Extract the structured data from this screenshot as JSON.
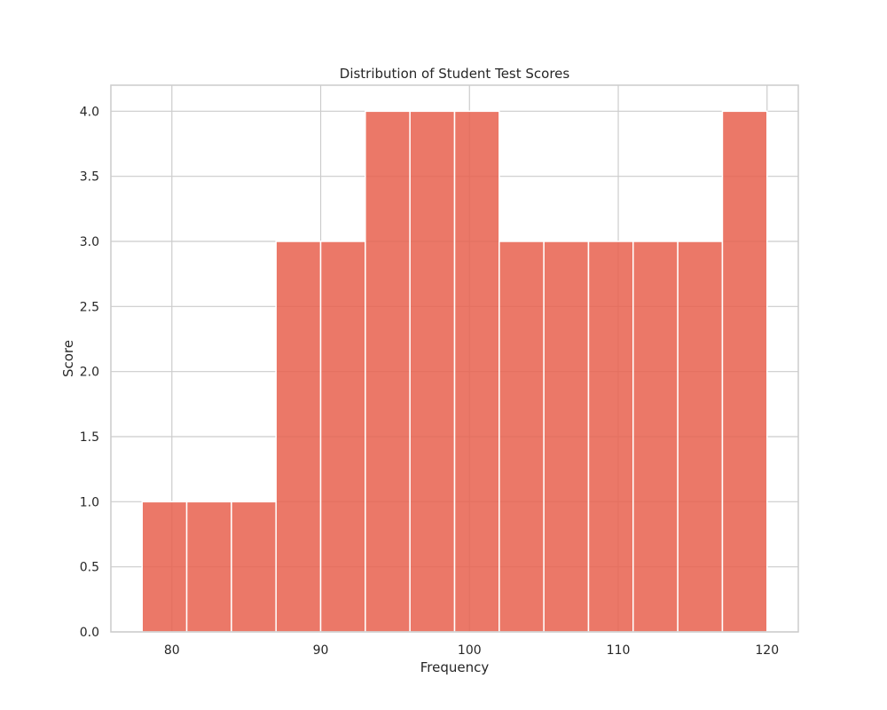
{
  "chart_data": {
    "type": "bar",
    "subtype": "histogram",
    "title": "Distribution of Student Test Scores",
    "xlabel": "Frequency",
    "ylabel": "Score",
    "bins": [
      {
        "x0": 78,
        "x1": 81,
        "count": 1
      },
      {
        "x0": 81,
        "x1": 84,
        "count": 1
      },
      {
        "x0": 84,
        "x1": 87,
        "count": 1
      },
      {
        "x0": 87,
        "x1": 90,
        "count": 3
      },
      {
        "x0": 90,
        "x1": 93,
        "count": 3
      },
      {
        "x0": 93,
        "x1": 96,
        "count": 4
      },
      {
        "x0": 96,
        "x1": 99,
        "count": 4
      },
      {
        "x0": 99,
        "x1": 102,
        "count": 4
      },
      {
        "x0": 102,
        "x1": 105,
        "count": 3
      },
      {
        "x0": 105,
        "x1": 108,
        "count": 3
      },
      {
        "x0": 108,
        "x1": 111,
        "count": 3
      },
      {
        "x0": 111,
        "x1": 114,
        "count": 3
      },
      {
        "x0": 114,
        "x1": 117,
        "count": 3
      },
      {
        "x0": 117,
        "x1": 120,
        "count": 4
      }
    ],
    "xlim": [
      75.9,
      122.1
    ],
    "ylim": [
      0,
      4.2
    ],
    "xticks": [
      80,
      90,
      100,
      110,
      120
    ],
    "xtick_labels": [
      "80",
      "90",
      "100",
      "110",
      "120"
    ],
    "yticks": [
      0,
      0.5,
      1,
      1.5,
      2,
      2.5,
      3,
      3.5,
      4
    ],
    "ytick_labels": [
      "0.0",
      "0.5",
      "1.0",
      "1.5",
      "2.0",
      "2.5",
      "3.0",
      "3.5",
      "4.0"
    ],
    "grid": true,
    "bar_color": "#e8604e",
    "bar_edge_color": "#ffffff",
    "bar_opacity": 0.85,
    "grid_color": "#cccccc"
  }
}
